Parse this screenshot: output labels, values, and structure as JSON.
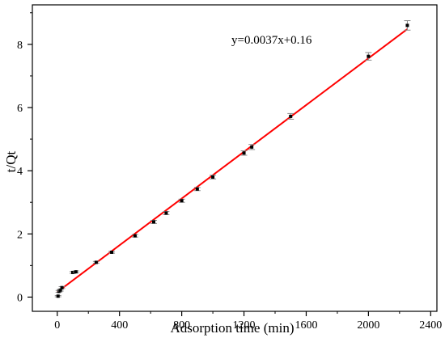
{
  "chart_data": {
    "type": "scatter",
    "title": "",
    "xlabel": "Adsorption time (min)",
    "ylabel": "t/Qt",
    "xlim": [
      -160,
      2440
    ],
    "ylim": [
      -0.45,
      9.25
    ],
    "x_ticks": [
      0,
      400,
      800,
      1200,
      1600,
      2000,
      2400
    ],
    "y_ticks": [
      0,
      2,
      4,
      6,
      8
    ],
    "grid": false,
    "annotation": "y=0.0037x+0.16",
    "colors": {
      "points": "#000000",
      "error_bars": "#8a8a8a",
      "fit_line": "#ff0000",
      "axes": "#000000"
    },
    "series": [
      {
        "points": [
          {
            "x": 5,
            "y": 0.03,
            "err": 0.02
          },
          {
            "x": 10,
            "y": 0.18,
            "err": 0.03
          },
          {
            "x": 20,
            "y": 0.22,
            "err": 0.03
          },
          {
            "x": 30,
            "y": 0.3,
            "err": 0.03
          },
          {
            "x": 100,
            "y": 0.78,
            "err": 0.03
          },
          {
            "x": 120,
            "y": 0.8,
            "err": 0.03
          },
          {
            "x": 250,
            "y": 1.1,
            "err": 0.03
          },
          {
            "x": 350,
            "y": 1.42,
            "err": 0.03
          },
          {
            "x": 500,
            "y": 1.94,
            "err": 0.04
          },
          {
            "x": 620,
            "y": 2.38,
            "err": 0.05
          },
          {
            "x": 700,
            "y": 2.66,
            "err": 0.05
          },
          {
            "x": 800,
            "y": 3.05,
            "err": 0.05
          },
          {
            "x": 900,
            "y": 3.42,
            "err": 0.05
          },
          {
            "x": 1000,
            "y": 3.8,
            "err": 0.06
          },
          {
            "x": 1200,
            "y": 4.56,
            "err": 0.07
          },
          {
            "x": 1250,
            "y": 4.75,
            "err": 0.08
          },
          {
            "x": 1500,
            "y": 5.72,
            "err": 0.09
          },
          {
            "x": 2000,
            "y": 7.62,
            "err": 0.12
          },
          {
            "x": 2250,
            "y": 8.6,
            "err": 0.15
          }
        ]
      }
    ],
    "fit_line": {
      "slope": 0.0037,
      "intercept": 0.16,
      "x_range": [
        0,
        2250
      ]
    }
  }
}
